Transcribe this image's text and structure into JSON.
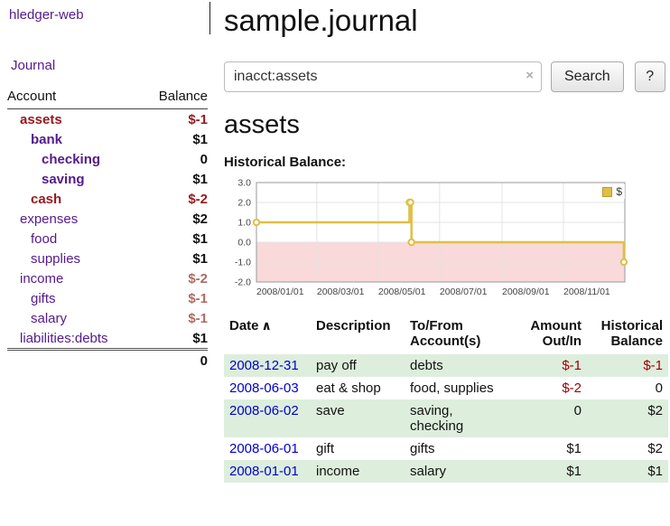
{
  "colors": {
    "link_purple": "#551a8b",
    "sidebar_negative_bold": "#96181c",
    "sidebar_negative_light": "#b06a64",
    "register_negative": "#a40000",
    "date_link_blue": "#0000cc",
    "row_green": "#ddeedd",
    "chart_line_gold": "#e0bf45",
    "chart_negative_region": "#f9d9d9"
  },
  "sidebar": {
    "app_title": "hledger-web",
    "journal_link": "Journal",
    "accounts": {
      "header_account": "Account",
      "header_balance": "Balance",
      "rows": [
        {
          "name": "assets",
          "balance": "$-1"
        },
        {
          "name": "bank",
          "balance": "$1"
        },
        {
          "name": "checking",
          "balance": "0"
        },
        {
          "name": "saving",
          "balance": "$1"
        },
        {
          "name": "cash",
          "balance": "$-2"
        },
        {
          "name": "expenses",
          "balance": "$2"
        },
        {
          "name": "food",
          "balance": "$1"
        },
        {
          "name": "supplies",
          "balance": "$1"
        },
        {
          "name": "income",
          "balance": "$-2"
        },
        {
          "name": "gifts",
          "balance": "$-1"
        },
        {
          "name": "salary",
          "balance": "$-1"
        },
        {
          "name": "liabilities:debts",
          "balance": "$1"
        }
      ],
      "total": "0"
    }
  },
  "main": {
    "title": "sample.journal",
    "search": {
      "value": "inacct:assets",
      "clear_icon": "×",
      "button_label": "Search",
      "help_label": "?"
    },
    "section_title": "assets",
    "chart_label": "Historical Balance:"
  },
  "chart_data": {
    "type": "line",
    "title": "Historical Balance",
    "legend_label": "$",
    "legend_position": "top-right",
    "grid": true,
    "xlim": [
      0,
      366
    ],
    "ylim": [
      -2,
      3
    ],
    "y_ticks": [
      -2,
      -1,
      0,
      1,
      2,
      3
    ],
    "x_ticks": [
      {
        "day": 0,
        "label": "2008/01/01"
      },
      {
        "day": 60,
        "label": "2008/03/01"
      },
      {
        "day": 121,
        "label": "2008/05/01"
      },
      {
        "day": 182,
        "label": "2008/07/01"
      },
      {
        "day": 244,
        "label": "2008/09/01"
      },
      {
        "day": 305,
        "label": "2008/11/01"
      }
    ],
    "series": [
      {
        "name": "$",
        "color": "#e0bf45",
        "step": true,
        "points": [
          {
            "date": "2008-01-01",
            "day": 0,
            "value": 1
          },
          {
            "date": "2008-06-01",
            "day": 152,
            "value": 2
          },
          {
            "date": "2008-06-02",
            "day": 153,
            "value": 2
          },
          {
            "date": "2008-06-03",
            "day": 154,
            "value": 0
          },
          {
            "date": "2008-12-31",
            "day": 365,
            "value": -1
          }
        ]
      }
    ]
  },
  "register": {
    "headers": {
      "date": "Date",
      "sort_icon": "∧",
      "description": "Description",
      "account": "To/From\nAccount(s)",
      "amount": "Amount\nOut/In",
      "balance": "Historical\nBalance"
    },
    "rows": [
      {
        "date": "2008-12-31",
        "description": "pay off",
        "account": "debts",
        "amount": "$-1",
        "balance": "$-1"
      },
      {
        "date": "2008-06-03",
        "description": "eat & shop",
        "account": "food, supplies",
        "amount": "$-2",
        "balance": "0"
      },
      {
        "date": "2008-06-02",
        "description": "save",
        "account": "saving,\nchecking",
        "amount": "0",
        "balance": "$2"
      },
      {
        "date": "2008-06-01",
        "description": "gift",
        "account": "gifts",
        "amount": "$1",
        "balance": "$2"
      },
      {
        "date": "2008-01-01",
        "description": "income",
        "account": "salary",
        "amount": "$1",
        "balance": "$1"
      }
    ]
  }
}
